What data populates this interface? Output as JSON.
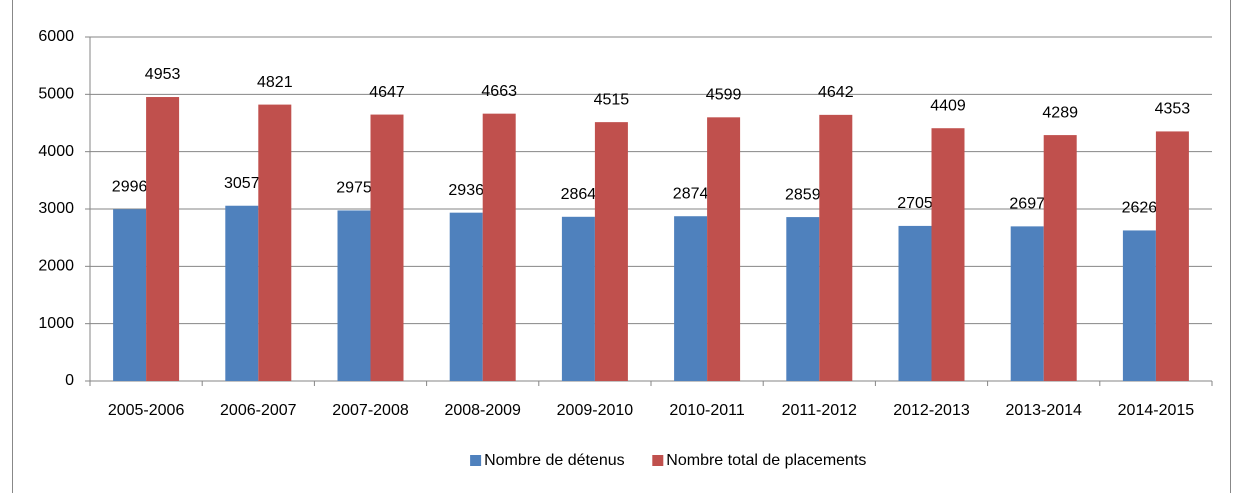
{
  "chart_data": {
    "type": "bar",
    "categories": [
      "2005-2006",
      "2006-2007",
      "2007-2008",
      "2008-2009",
      "2009-2010",
      "2010-2011",
      "2011-2012",
      "2012-2013",
      "2013-2014",
      "2014-2015"
    ],
    "series": [
      {
        "name": "Nombre de détenus",
        "color": "#4f81bd",
        "values": [
          2996,
          3057,
          2975,
          2936,
          2864,
          2874,
          2859,
          2705,
          2697,
          2626
        ]
      },
      {
        "name": "Nombre total de placements",
        "color": "#c0504d",
        "values": [
          4953,
          4821,
          4647,
          4663,
          4515,
          4599,
          4642,
          4409,
          4289,
          4353
        ]
      }
    ],
    "ylim": [
      0,
      6000
    ],
    "yticks": [
      0,
      1000,
      2000,
      3000,
      4000,
      5000,
      6000
    ],
    "grid": true,
    "legend": "bottom"
  }
}
